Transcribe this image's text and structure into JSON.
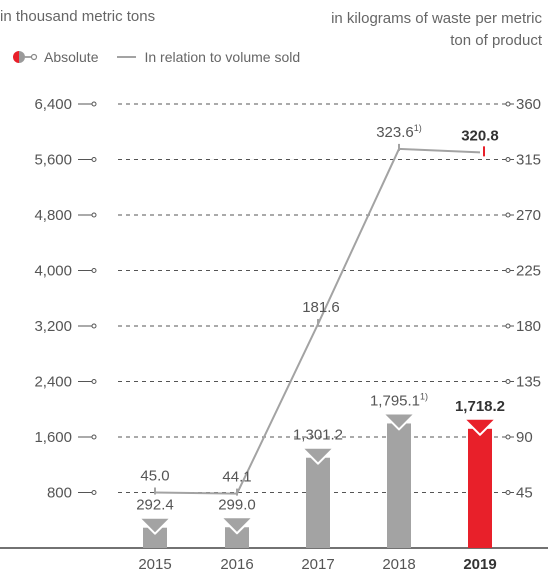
{
  "header": {
    "left_unit": "in thousand metric tons",
    "right_unit": "in kilograms of waste per metric ton of product"
  },
  "legend": {
    "absolute_label": "Absolute",
    "relative_label": "In relation to volume sold"
  },
  "colors": {
    "bar_gray": "#a3a3a3",
    "bar_highlight": "#e8202a",
    "line_gray": "#a3a3a3",
    "axis": "#444444",
    "grid": "#555555",
    "text": "#555555"
  },
  "chart_data": {
    "type": "bar",
    "categories": [
      "2015",
      "2016",
      "2017",
      "2018",
      "2019"
    ],
    "highlight_category": "2019",
    "series": [
      {
        "name": "Absolute",
        "type": "bar",
        "axis": "left",
        "values": [
          292.4,
          299.0,
          1301.2,
          1795.1,
          1718.2
        ],
        "labels": [
          "292.4",
          "299.0",
          "1,301.2",
          "1,795.1",
          "1,718.2"
        ],
        "footnotes": [
          "",
          "",
          "",
          "1)",
          ""
        ]
      },
      {
        "name": "In relation to volume sold",
        "type": "line",
        "axis": "right",
        "values": [
          45.0,
          44.1,
          181.6,
          323.6,
          320.8
        ],
        "labels": [
          "45.0",
          "44.1",
          "181.6",
          "323.6",
          "320.8"
        ],
        "footnotes": [
          "",
          "",
          "",
          "1)",
          ""
        ]
      }
    ],
    "y_left": {
      "ylim": [
        0,
        6400
      ],
      "ticks": [
        800,
        1600,
        2400,
        3200,
        4000,
        4800,
        5600,
        6400
      ],
      "tick_labels": [
        "800",
        "1,600",
        "2,400",
        "3,200",
        "4,000",
        "4,800",
        "5,600",
        "6,400"
      ]
    },
    "y_right": {
      "ylim": [
        0,
        360
      ],
      "ticks": [
        45,
        90,
        135,
        180,
        225,
        270,
        315,
        360
      ],
      "tick_labels": [
        "45",
        "90",
        "135",
        "180",
        "225",
        "270",
        "315",
        "360"
      ]
    },
    "grid": true,
    "legend_position": "top-left"
  }
}
